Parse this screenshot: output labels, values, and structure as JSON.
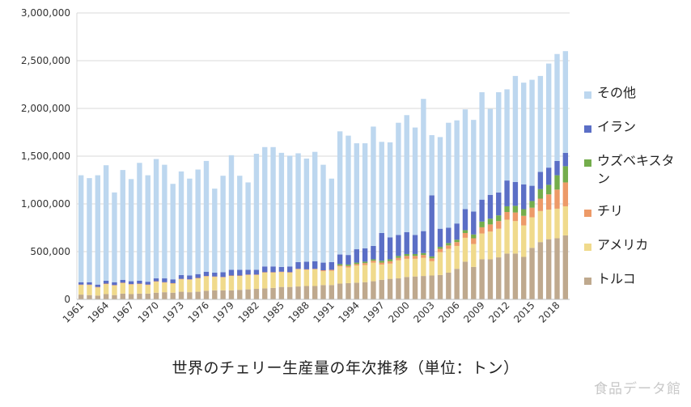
{
  "chart_data": {
    "type": "bar",
    "stacked": true,
    "title": "世界のチェリー生産量の年次推移（単位：トン）",
    "xlabel": "",
    "ylabel": "",
    "ylim": [
      0,
      3000000
    ],
    "yticks": [
      "0",
      "500,000",
      "1,000,000",
      "1,500,000",
      "2,000,000",
      "2,500,000",
      "3,000,000"
    ],
    "grid": true,
    "legend_position": "right",
    "x": [
      1961,
      1962,
      1963,
      1964,
      1965,
      1966,
      1967,
      1968,
      1969,
      1970,
      1971,
      1972,
      1973,
      1974,
      1975,
      1976,
      1977,
      1978,
      1979,
      1980,
      1981,
      1982,
      1983,
      1984,
      1985,
      1986,
      1987,
      1988,
      1989,
      1990,
      1991,
      1992,
      1993,
      1994,
      1995,
      1996,
      1997,
      1998,
      1999,
      2000,
      2001,
      2002,
      2003,
      2004,
      2005,
      2006,
      2007,
      2008,
      2009,
      2010,
      2011,
      2012,
      2013,
      2014,
      2015,
      2016,
      2017,
      2018,
      2019
    ],
    "xtick_labels": [
      "1961",
      "1964",
      "1967",
      "1970",
      "1973",
      "1976",
      "1979",
      "1982",
      "1985",
      "1988",
      "1991",
      "1994",
      "1997",
      "2000",
      "2003",
      "2006",
      "2009",
      "2012",
      "2015",
      "2018"
    ],
    "series": [
      {
        "name": "トルコ",
        "color": "#bfa98e",
        "values": [
          50000,
          45000,
          40000,
          55000,
          45000,
          60000,
          55000,
          60000,
          60000,
          70000,
          75000,
          70000,
          80000,
          75000,
          80000,
          90000,
          95000,
          95000,
          95000,
          100000,
          105000,
          110000,
          115000,
          120000,
          130000,
          130000,
          135000,
          140000,
          140000,
          150000,
          150000,
          165000,
          170000,
          175000,
          180000,
          190000,
          205000,
          215000,
          220000,
          235000,
          240000,
          245000,
          250000,
          255000,
          280000,
          320000,
          395000,
          340000,
          420000,
          420000,
          440000,
          480000,
          480000,
          445000,
          540000,
          600000,
          630000,
          640000,
          670000
        ]
      },
      {
        "name": "アメリカ",
        "color": "#f0da8c",
        "values": [
          100000,
          105000,
          85000,
          105000,
          100000,
          110000,
          100000,
          100000,
          90000,
          115000,
          100000,
          95000,
          130000,
          130000,
          140000,
          150000,
          140000,
          135000,
          150000,
          145000,
          150000,
          145000,
          165000,
          160000,
          155000,
          150000,
          180000,
          170000,
          175000,
          145000,
          150000,
          180000,
          165000,
          180000,
          180000,
          195000,
          160000,
          160000,
          190000,
          190000,
          185000,
          190000,
          150000,
          240000,
          250000,
          240000,
          250000,
          240000,
          270000,
          290000,
          300000,
          355000,
          340000,
          330000,
          320000,
          325000,
          310000,
          310000,
          305000
        ]
      },
      {
        "name": "チリ",
        "color": "#ed9a68",
        "values": [
          5000,
          5000,
          5000,
          5000,
          5000,
          5000,
          5000,
          5000,
          5000,
          5000,
          5000,
          5000,
          5000,
          5000,
          5000,
          5000,
          5000,
          5000,
          5000,
          5000,
          5000,
          5000,
          5000,
          5000,
          5000,
          5000,
          5000,
          5000,
          5000,
          10000,
          10000,
          10000,
          15000,
          15000,
          20000,
          20000,
          20000,
          25000,
          25000,
          30000,
          30000,
          30000,
          30000,
          35000,
          35000,
          40000,
          50000,
          60000,
          65000,
          75000,
          80000,
          80000,
          90000,
          100000,
          100000,
          130000,
          160000,
          200000,
          250000
        ]
      },
      {
        "name": "ウズベキスタン",
        "color": "#74ad4c",
        "values": [
          0,
          0,
          0,
          0,
          0,
          0,
          0,
          0,
          0,
          0,
          0,
          0,
          0,
          0,
          0,
          0,
          0,
          0,
          0,
          0,
          0,
          0,
          0,
          0,
          0,
          0,
          0,
          0,
          0,
          0,
          0,
          15000,
          15000,
          15000,
          15000,
          15000,
          20000,
          20000,
          20000,
          20000,
          20000,
          20000,
          20000,
          20000,
          25000,
          25000,
          30000,
          40000,
          60000,
          60000,
          60000,
          60000,
          70000,
          70000,
          70000,
          100000,
          100000,
          150000,
          170000
        ]
      },
      {
        "name": "イラン",
        "color": "#5b6fc6",
        "values": [
          25000,
          25000,
          25000,
          30000,
          30000,
          30000,
          30000,
          30000,
          30000,
          30000,
          40000,
          40000,
          40000,
          40000,
          40000,
          45000,
          40000,
          50000,
          60000,
          60000,
          50000,
          50000,
          60000,
          60000,
          50000,
          60000,
          70000,
          80000,
          80000,
          80000,
          80000,
          100000,
          100000,
          140000,
          140000,
          140000,
          290000,
          230000,
          220000,
          230000,
          200000,
          230000,
          640000,
          190000,
          160000,
          170000,
          220000,
          240000,
          230000,
          250000,
          240000,
          270000,
          250000,
          260000,
          160000,
          180000,
          180000,
          150000,
          140000
        ]
      },
      {
        "name": "その他",
        "color": "#bdd7ef",
        "values": [
          1120000,
          1090000,
          1145000,
          1210000,
          940000,
          1150000,
          1070000,
          1235000,
          1115000,
          1250000,
          1190000,
          1000000,
          1085000,
          1015000,
          1095000,
          1160000,
          880000,
          1010000,
          1200000,
          985000,
          915000,
          1215000,
          1250000,
          1250000,
          1195000,
          1160000,
          1140000,
          1080000,
          1145000,
          1025000,
          875000,
          1290000,
          1250000,
          1110000,
          1100000,
          1250000,
          955000,
          995000,
          1175000,
          1225000,
          1125000,
          1385000,
          630000,
          960000,
          1100000,
          1080000,
          1045000,
          960000,
          1125000,
          900000,
          1050000,
          955000,
          1110000,
          1065000,
          1110000,
          1005000,
          1090000,
          1120000,
          1065000
        ]
      }
    ]
  },
  "watermark": "食品データ館"
}
